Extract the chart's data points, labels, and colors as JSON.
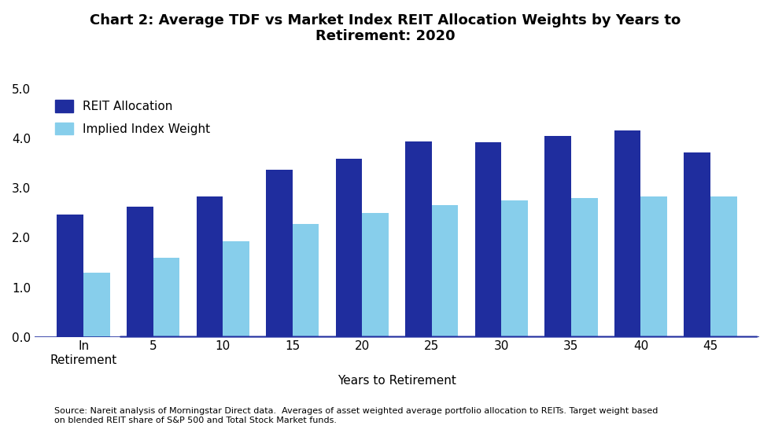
{
  "title": "Chart 2: Average TDF vs Market Index REIT Allocation Weights by Years to\nRetirement: 2020",
  "categories": [
    "In\nRetirement",
    "5",
    "10",
    "15",
    "20",
    "25",
    "30",
    "35",
    "40",
    "45"
  ],
  "reit_allocation": [
    2.47,
    2.62,
    2.84,
    3.37,
    3.6,
    3.95,
    3.93,
    4.05,
    4.17,
    3.72
  ],
  "implied_index": [
    1.3,
    1.6,
    1.93,
    2.27,
    2.5,
    2.66,
    2.75,
    2.8,
    2.83,
    2.83
  ],
  "reit_color": "#1F2D9E",
  "implied_color": "#87CEEB",
  "xlabel": "Years to Retirement",
  "ylabel": "",
  "ylim": [
    0,
    5.0
  ],
  "yticks": [
    0.0,
    1.0,
    2.0,
    3.0,
    4.0,
    5.0
  ],
  "legend_reit": "REIT Allocation",
  "legend_implied": "Implied Index Weight",
  "footnote": "Source: Nareit analysis of Morningstar Direct data.  Averages of asset weighted average portfolio allocation to REITs. Target weight based\non blended REIT share of S&P 500 and Total Stock Market funds.",
  "bar_width": 0.38,
  "title_fontsize": 13,
  "axis_line_color": "#1F2D9E",
  "background_color": "#ffffff"
}
